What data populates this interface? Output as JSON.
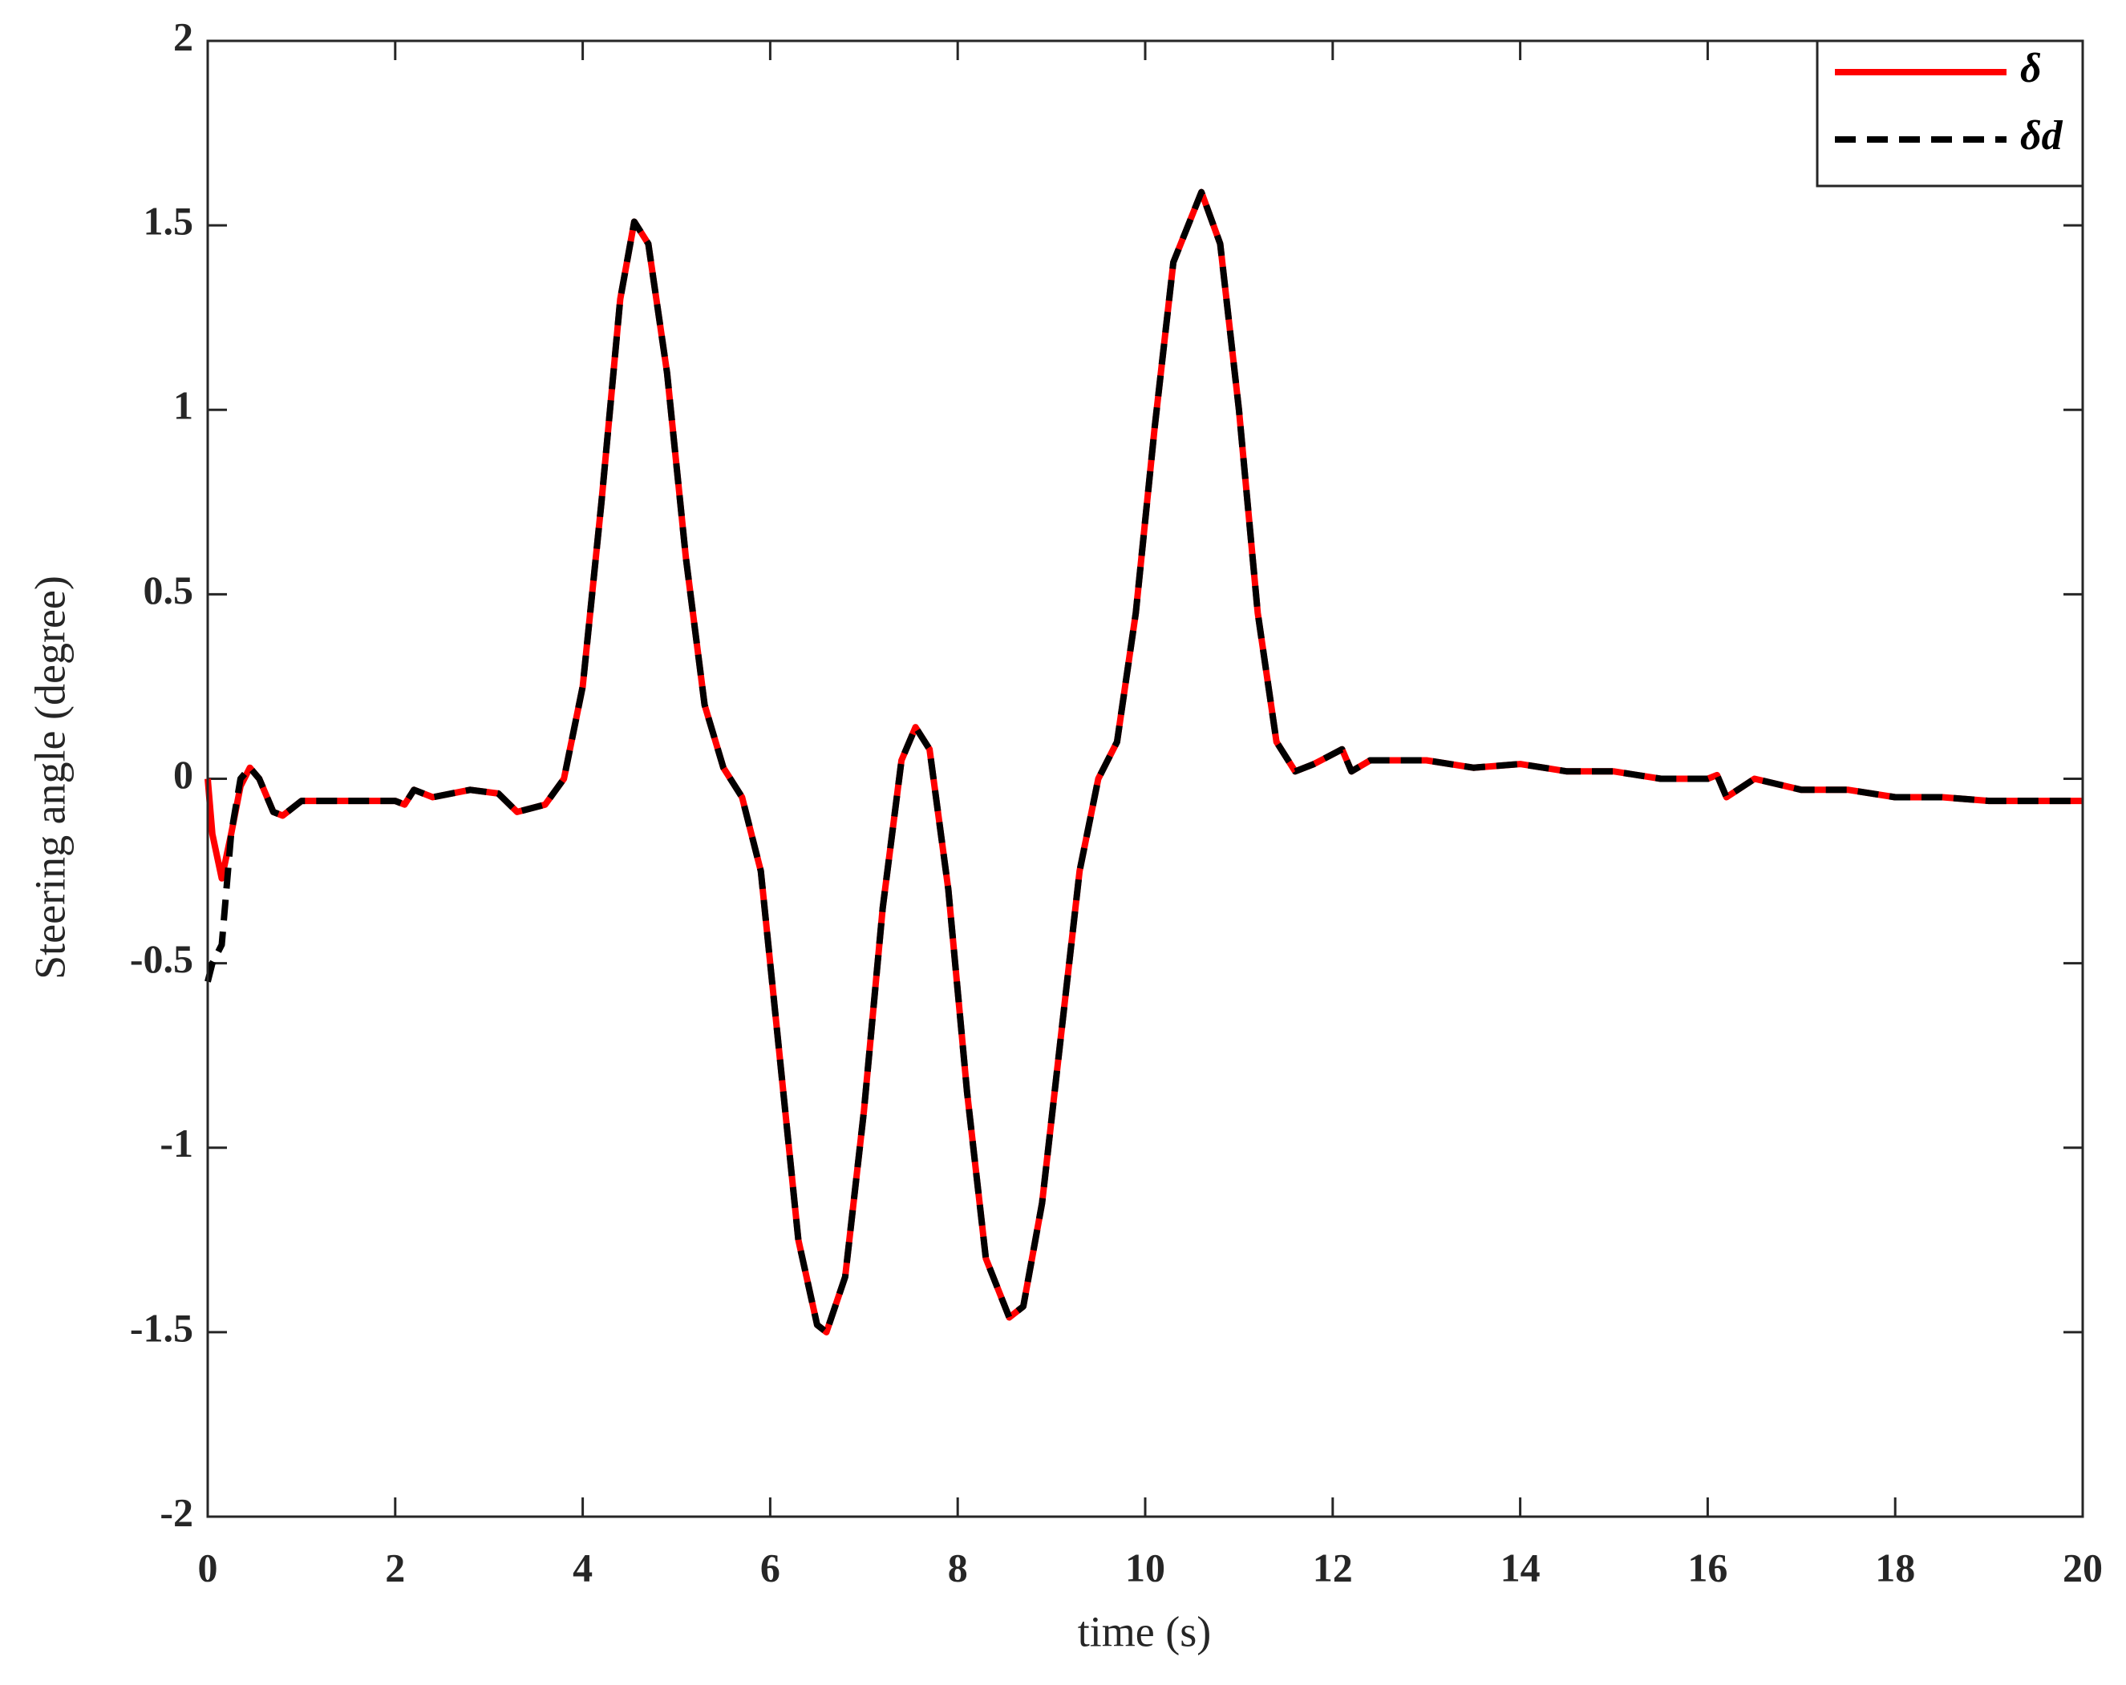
{
  "chart_data": {
    "type": "line",
    "xlabel": "time (s)",
    "ylabel": "Steering angle (degree)",
    "x": [
      0,
      0.05,
      0.15,
      0.25,
      0.35,
      0.45,
      0.55,
      0.7,
      0.8,
      1.0,
      1.5,
      2.0,
      2.1,
      2.2,
      2.4,
      2.8,
      3.1,
      3.3,
      3.6,
      3.8,
      4.0,
      4.2,
      4.4,
      4.55,
      4.7,
      4.9,
      5.1,
      5.3,
      5.5,
      5.7,
      5.9,
      6.1,
      6.3,
      6.5,
      6.6,
      6.8,
      7.0,
      7.2,
      7.4,
      7.55,
      7.7,
      7.9,
      8.1,
      8.3,
      8.55,
      8.7,
      8.9,
      9.1,
      9.3,
      9.5,
      9.7,
      9.9,
      10.1,
      10.3,
      10.6,
      10.8,
      11.0,
      11.2,
      11.4,
      11.6,
      11.8,
      12.1,
      12.2,
      12.4,
      13,
      13.5,
      14,
      14.5,
      15,
      15.5,
      16,
      16.1,
      16.2,
      16.5,
      17,
      17.5,
      18,
      18.5,
      19,
      19.5,
      20
    ],
    "series": [
      {
        "name": "δ",
        "color": "#ff0000",
        "dash": false,
        "values": [
          0,
          -0.15,
          -0.27,
          -0.15,
          -0.02,
          0.03,
          0.0,
          -0.09,
          -0.1,
          -0.06,
          -0.06,
          -0.06,
          -0.07,
          -0.03,
          -0.05,
          -0.03,
          -0.04,
          -0.09,
          -0.07,
          0.0,
          0.25,
          0.75,
          1.3,
          1.51,
          1.45,
          1.1,
          0.6,
          0.2,
          0.03,
          -0.05,
          -0.25,
          -0.75,
          -1.25,
          -1.48,
          -1.5,
          -1.35,
          -0.9,
          -0.35,
          0.05,
          0.14,
          0.08,
          -0.3,
          -0.85,
          -1.3,
          -1.46,
          -1.43,
          -1.15,
          -0.7,
          -0.25,
          0.0,
          0.1,
          0.45,
          0.95,
          1.4,
          1.59,
          1.45,
          1.0,
          0.45,
          0.1,
          0.02,
          0.04,
          0.08,
          0.02,
          0.05,
          0.05,
          0.03,
          0.04,
          0.02,
          0.02,
          0.0,
          0.0,
          0.01,
          -0.05,
          0.0,
          -0.03,
          -0.03,
          -0.05,
          -0.05,
          -0.06,
          -0.06,
          -0.06
        ]
      },
      {
        "name": "δd",
        "color": "#000000",
        "dash": true,
        "values": [
          -0.55,
          -0.5,
          -0.45,
          -0.15,
          0.0,
          0.03,
          0.0,
          -0.09,
          -0.1,
          -0.06,
          -0.06,
          -0.06,
          -0.07,
          -0.03,
          -0.05,
          -0.03,
          -0.04,
          -0.09,
          -0.07,
          0.0,
          0.25,
          0.75,
          1.3,
          1.51,
          1.45,
          1.1,
          0.6,
          0.2,
          0.03,
          -0.05,
          -0.25,
          -0.75,
          -1.25,
          -1.48,
          -1.5,
          -1.35,
          -0.9,
          -0.35,
          0.05,
          0.14,
          0.08,
          -0.3,
          -0.85,
          -1.3,
          -1.46,
          -1.43,
          -1.15,
          -0.7,
          -0.25,
          0.0,
          0.1,
          0.45,
          0.95,
          1.4,
          1.59,
          1.45,
          1.0,
          0.45,
          0.1,
          0.02,
          0.04,
          0.08,
          0.02,
          0.05,
          0.05,
          0.03,
          0.04,
          0.02,
          0.02,
          0.0,
          0.0,
          0.01,
          -0.05,
          0.0,
          -0.03,
          -0.03,
          -0.05,
          -0.05,
          -0.06,
          -0.06,
          -0.06
        ]
      }
    ],
    "xlim": [
      0,
      20
    ],
    "xticks": [
      0,
      2,
      4,
      6,
      8,
      10,
      12,
      14,
      16,
      18,
      20
    ],
    "ylim": [
      -2,
      2
    ],
    "yticks": [
      -2,
      -1.5,
      -1,
      -0.5,
      0,
      0.5,
      1,
      1.5,
      2
    ],
    "grid": false,
    "legend": "northeast"
  }
}
